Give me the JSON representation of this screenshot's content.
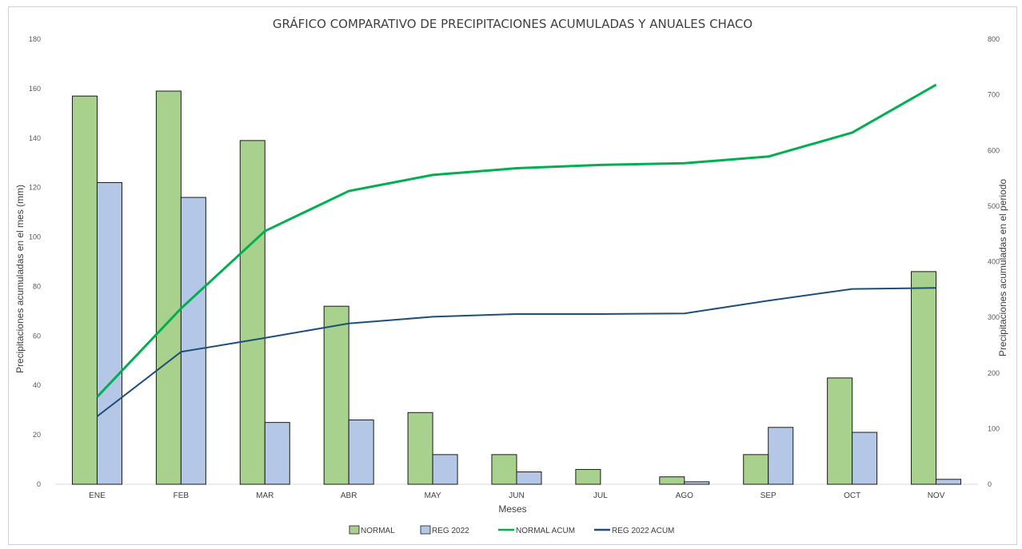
{
  "chart_data": {
    "type": "bar",
    "title": "GRÁFICO COMPARATIVO DE PRECIPITACIONES ACUMULADAS Y ANUALES CHACO",
    "xlabel": "Meses",
    "ylabel": "Precipitaciones acumuladas en el mes (mm)",
    "y2label": "Precipitaciones acumuladas en el periodo",
    "categories": [
      "ENE",
      "FEB",
      "MAR",
      "ABR",
      "MAY",
      "JUN",
      "JUL",
      "AGO",
      "SEP",
      "OCT",
      "NOV"
    ],
    "ylim": [
      0,
      180
    ],
    "yticks": [
      0,
      20,
      40,
      60,
      80,
      100,
      120,
      140,
      160,
      180
    ],
    "ytick_labels": [
      "0",
      "20",
      "40",
      "60",
      "80",
      "100",
      "120",
      "140",
      "160",
      "180"
    ],
    "y2lim": [
      0,
      800
    ],
    "y2ticks": [
      0,
      100,
      200,
      300,
      400,
      500,
      600,
      700,
      800
    ],
    "y2tick_labels": [
      "0",
      "100",
      "200",
      "300",
      "400",
      "500",
      "600",
      "700",
      "800"
    ],
    "grid": false,
    "legend_position": "bottom",
    "series": [
      {
        "name": "NORMAL",
        "type": "bar",
        "axis": "left",
        "color": "#a9d18e",
        "values": [
          157,
          159,
          139,
          72,
          29,
          12,
          6,
          3,
          12,
          43,
          86
        ]
      },
      {
        "name": "REG 2022",
        "type": "bar",
        "axis": "left",
        "color": "#b4c7e7",
        "values": [
          122,
          116,
          25,
          26,
          12,
          5,
          0,
          1,
          23,
          21,
          2
        ]
      },
      {
        "name": "NORMAL ACUM",
        "type": "line",
        "axis": "right",
        "color": "#00b050",
        "values": [
          157,
          316,
          455,
          527,
          556,
          568,
          574,
          577,
          589,
          632,
          718
        ]
      },
      {
        "name": "REG 2022 ACUM",
        "type": "line",
        "axis": "right",
        "color": "#1f4e79",
        "values": [
          122,
          238,
          263,
          289,
          301,
          306,
          306,
          307,
          330,
          351,
          353
        ]
      }
    ]
  }
}
